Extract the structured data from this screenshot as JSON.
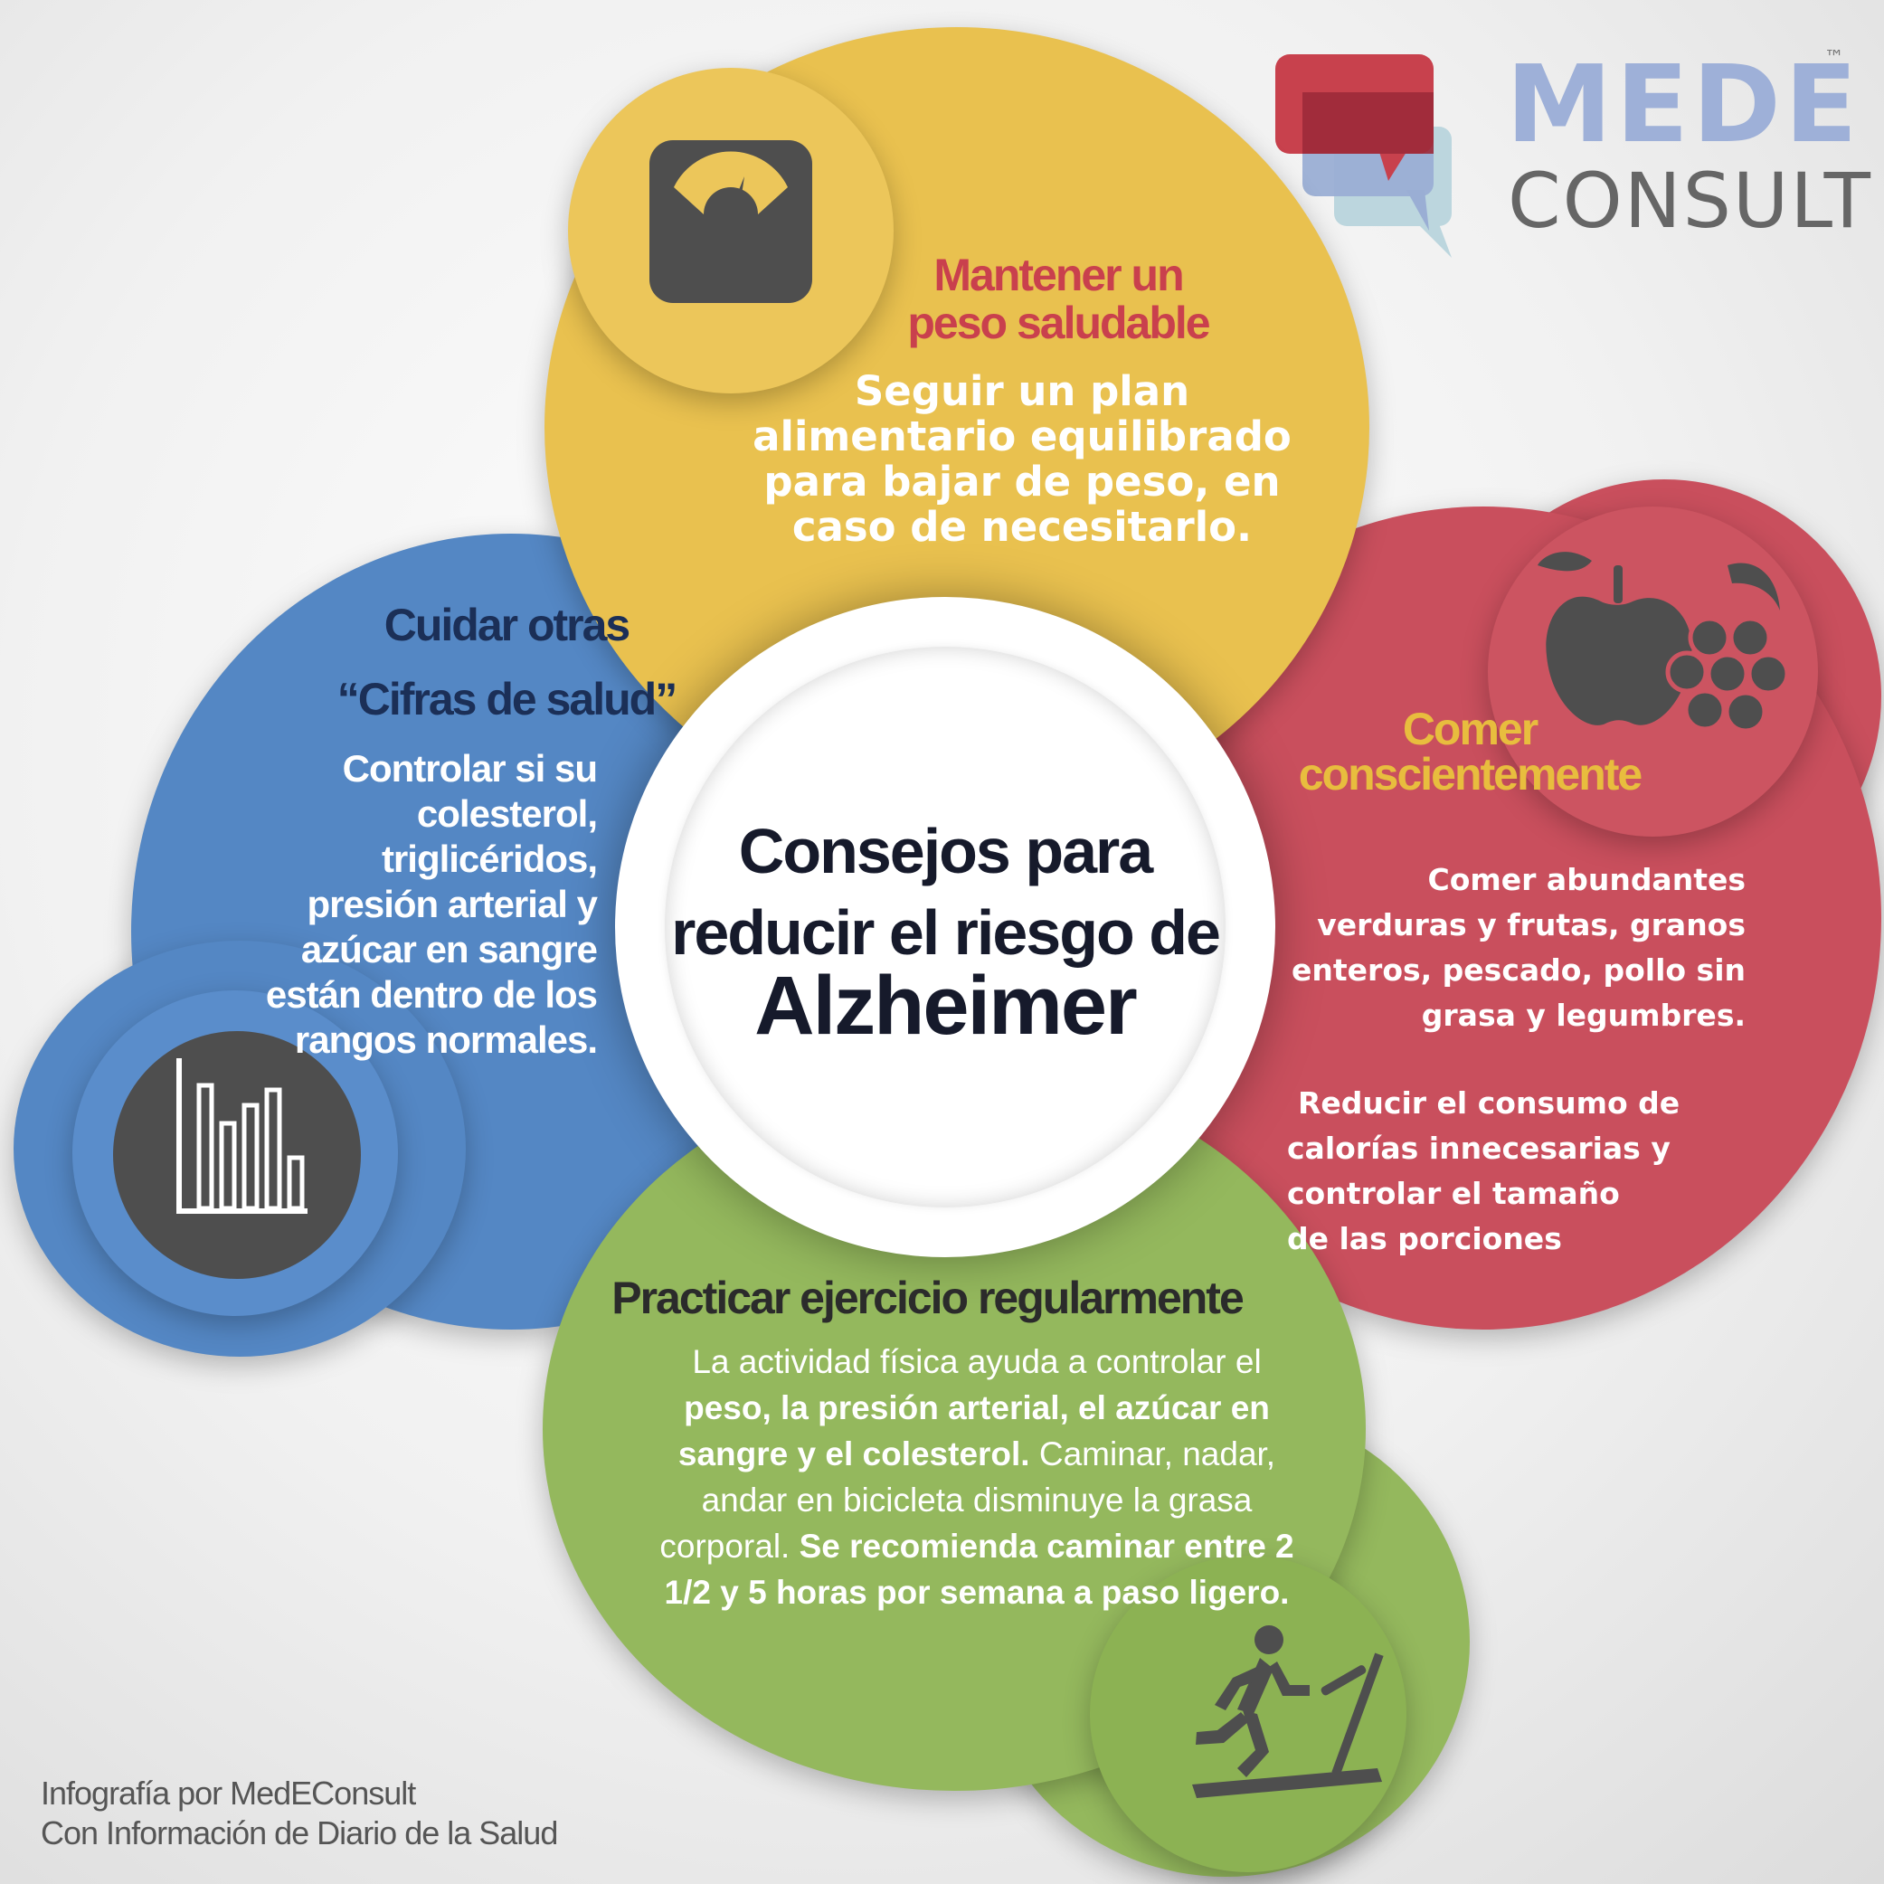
{
  "colors": {
    "yellow": "#e9c14f",
    "yellow_inner": "#ecc65a",
    "red": "#c94f5d",
    "blue": "#5487c4",
    "blue_inner": "#5a8dcb",
    "green": "#94b85d",
    "green_inner": "#8cb253",
    "icon_dark": "#4e4e4e",
    "title_red": "#c9404d",
    "title_navy": "#1b2f57",
    "title_yellow": "#e8bd3e",
    "title_dark": "#2b2b2b"
  },
  "logo": {
    "brand_top": "MEDE",
    "brand_bottom": "CONSULT",
    "trademark": "™"
  },
  "center": {
    "line1": "Consejos para",
    "line2": "reducir el riesgo de",
    "line3": "Alzheimer"
  },
  "weight": {
    "icon": "scale-icon",
    "title_line1": "Mantener un",
    "title_line2": "peso saludable",
    "body_line1": "Seguir un plan",
    "body_line2": "alimentario equilibrado",
    "body_line3": "para bajar de peso, en",
    "body_line4": "caso de necesitarlo."
  },
  "eat": {
    "icon": "fruit-icon",
    "title_line1": "Comer",
    "title_line2": "conscientemente",
    "p1_line1": "Comer abundantes",
    "p1_line2": "verduras y frutas, granos",
    "p1_line3": "enteros, pescado, pollo sin",
    "p1_line4": "grasa y legumbres.",
    "p2_line1": "Reducir el consumo de",
    "p2_line2": "calorías innecesarias y",
    "p2_line3": "controlar el tamaño",
    "p2_line4": "de las porciones"
  },
  "numbers": {
    "icon": "bar-chart-icon",
    "title_line1": "Cuidar otras",
    "title_line2": "“Cifras de salud”",
    "body_line1": "Controlar si su",
    "body_line2": "colesterol,",
    "body_line3": "triglicéridos,",
    "body_line4": "presión arterial y",
    "body_line5": "azúcar en sangre",
    "body_line6": "están dentro de los",
    "body_line7": "rangos normales."
  },
  "exercise": {
    "icon": "treadmill-icon",
    "title": "Practicar ejercicio regularmente",
    "l1": "La actividad física ayuda a controlar el",
    "l2_bold": "peso, la presión arterial, el azúcar en",
    "l3_bold": "sangre y el colesterol.",
    "l3_rest": " Caminar, nadar,",
    "l4": "andar en bicicleta disminuye la grasa",
    "l5_start": "corporal. ",
    "l5_bold": "Se recomienda caminar entre 2",
    "l6_bold": "1/2 y 5 horas por semana a paso ligero."
  },
  "credits": {
    "line1": "Infografía por MedEConsult",
    "line2": "Con Información de Diario de la Salud"
  }
}
